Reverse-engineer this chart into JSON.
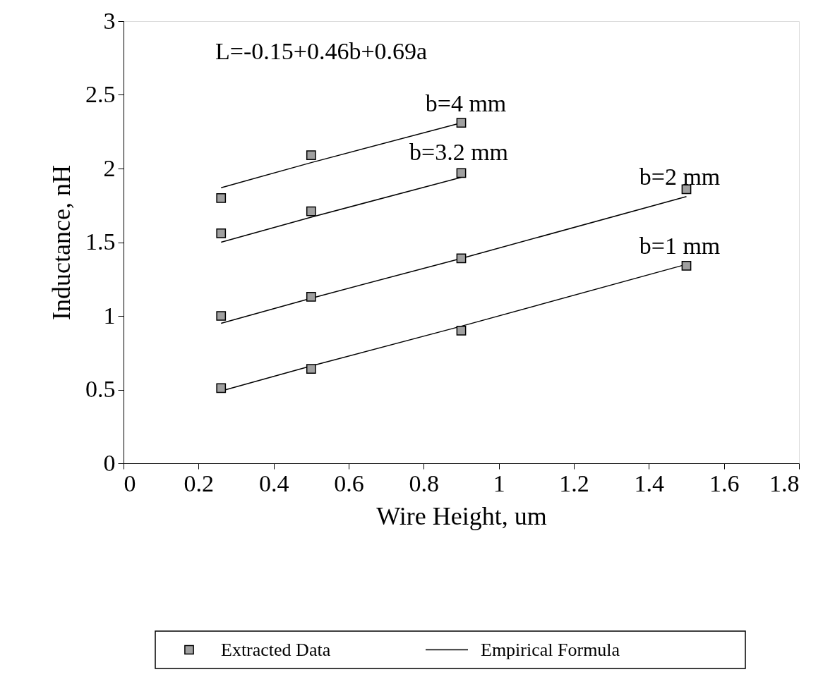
{
  "chart_data": {
    "type": "line",
    "xlabel": "Wire Height, um",
    "ylabel": "Inductance, nH",
    "xlim": [
      0,
      1.8
    ],
    "xticks": [
      0,
      0.2,
      0.4,
      0.6,
      0.8,
      1,
      1.2,
      1.4,
      1.6,
      1.8
    ],
    "ylim": [
      0,
      3
    ],
    "yticks": [
      0,
      0.5,
      1,
      1.5,
      2,
      2.5,
      3
    ],
    "grid": false,
    "legend": "bottom",
    "series": [
      {
        "name": "Extracted Data",
        "type": "scatter",
        "marker": "square",
        "color": "#a0a0a0",
        "x": [
          0.26,
          0.5,
          0.9,
          1.5,
          0.26,
          0.5,
          0.9,
          1.5,
          0.26,
          0.5,
          0.9,
          0.26,
          0.5,
          0.9
        ],
        "values": [
          0.51,
          0.64,
          0.9,
          1.34,
          1.0,
          1.13,
          1.39,
          1.86,
          1.56,
          1.71,
          1.97,
          1.8,
          2.09,
          2.31
        ]
      },
      {
        "name": "Empirical Formula",
        "color": "#000000",
        "x": [
          0.26,
          0.5,
          0.9,
          1.5
        ],
        "values": [
          0.49,
          0.66,
          0.93,
          1.35
        ]
      },
      {
        "color": "#000000",
        "x": [
          0.26,
          0.5,
          0.9,
          1.5
        ],
        "values": [
          0.95,
          1.12,
          1.39,
          1.81
        ]
      },
      {
        "color": "#000000",
        "x": [
          0.26,
          0.5,
          0.9
        ],
        "values": [
          1.5,
          1.67,
          1.94
        ]
      },
      {
        "color": "#000000",
        "x": [
          0.26,
          0.5,
          0.9
        ],
        "values": [
          1.87,
          2.04,
          2.31
        ]
      }
    ],
    "annotations": [
      "L=-0.15+0.46b+0.69a",
      "b=4 mm",
      "b=3.2 mm",
      "b=2 mm",
      "b=1 mm"
    ]
  }
}
